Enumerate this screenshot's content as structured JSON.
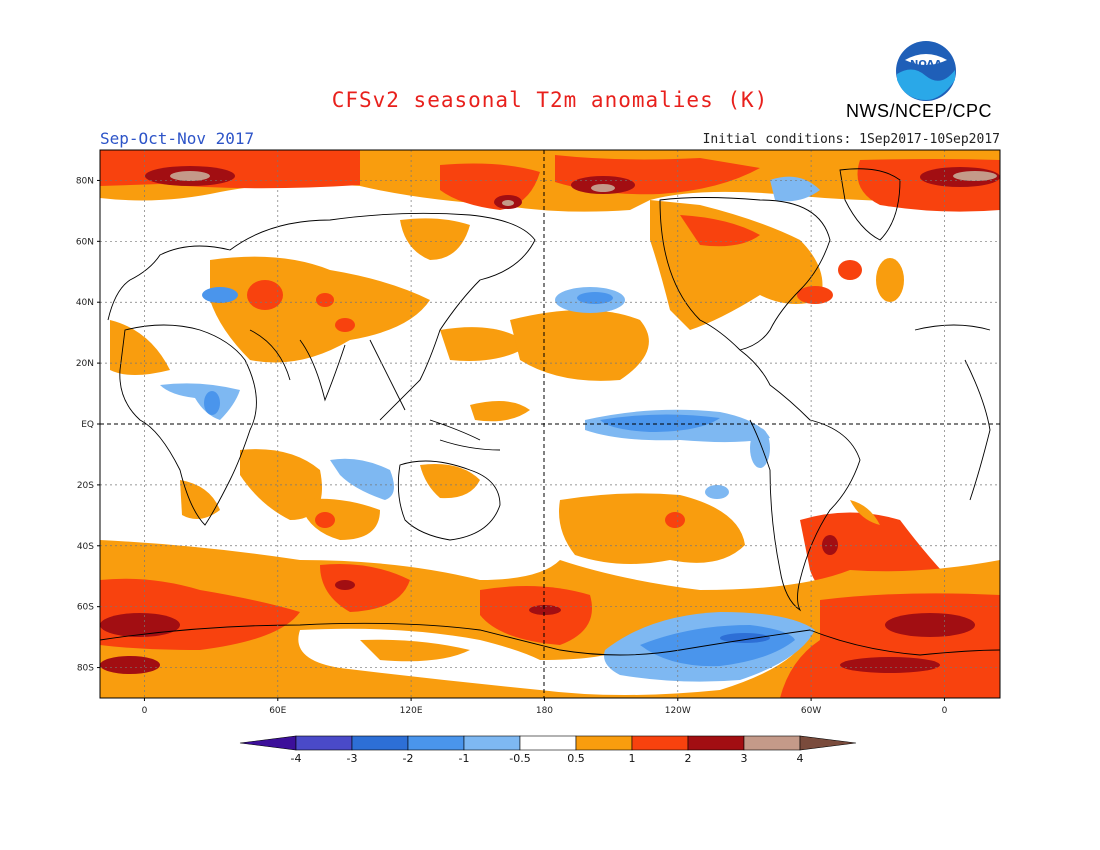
{
  "header": {
    "title": "CFSv2 seasonal T2m anomalies (K)",
    "agency": "NWS/NCEP/CPC",
    "season": "Sep-Oct-Nov 2017",
    "initial_conditions": "Initial conditions: 1Sep2017-10Sep2017",
    "logo_text": "NOAA"
  },
  "axes": {
    "lat_labels": [
      "80N",
      "60N",
      "40N",
      "20N",
      "EQ",
      "20S",
      "40S",
      "60S",
      "80S"
    ],
    "lat_values": [
      80,
      60,
      40,
      20,
      0,
      -20,
      -40,
      -60,
      -80
    ],
    "lon_labels": [
      "0",
      "60E",
      "120E",
      "180",
      "120W",
      "60W",
      "0"
    ],
    "lon_values": [
      0,
      60,
      120,
      180,
      240,
      300,
      360
    ],
    "lon_range": [
      -20,
      385
    ],
    "lat_range": [
      -90,
      90
    ]
  },
  "colorbar": {
    "labels": [
      "-4",
      "-3",
      "-2",
      "-1",
      "-0.5",
      "0.5",
      "1",
      "2",
      "3",
      "4"
    ],
    "colors": [
      "#3c0f9a",
      "#4a4ac8",
      "#2d6fd6",
      "#4a95ec",
      "#7eb8f2",
      "#ffffff",
      "#f99d0e",
      "#f8420e",
      "#a20e12",
      "#c49a89",
      "#7a4b3c"
    ]
  },
  "colors": {
    "title": "#e8201c",
    "season": "#2d54c8",
    "noaa_blue": "#1f5fb8"
  }
}
